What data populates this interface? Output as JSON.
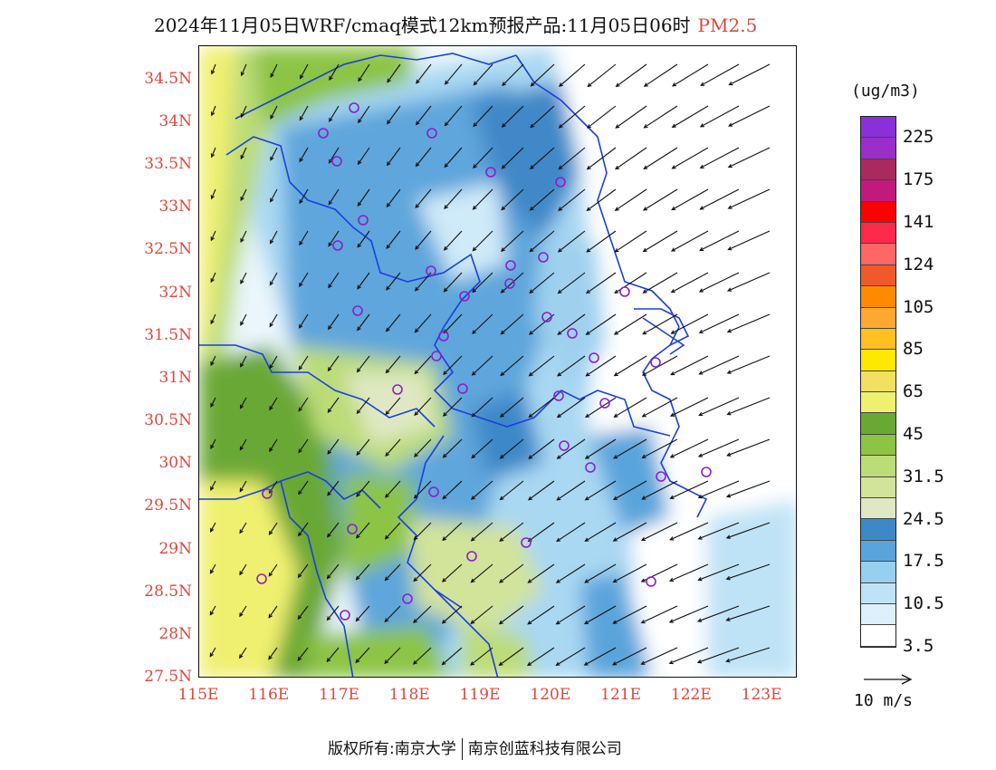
{
  "title": {
    "main": "2024年11月05日WRF/cmaq模式12km预报产品:11月05日06时",
    "pollutant": "PM2.5"
  },
  "map": {
    "lat_labels": [
      "34.5N",
      "34N",
      "33.5N",
      "33N",
      "32.5N",
      "32N",
      "31.5N",
      "31N",
      "30.5N",
      "30N",
      "29.5N",
      "29N",
      "28.5N",
      "28N",
      "27.5N"
    ],
    "lon_labels": [
      "115E",
      "116E",
      "117E",
      "118E",
      "119E",
      "120E",
      "121E",
      "122E",
      "123E"
    ],
    "lat_range": [
      27.5,
      34.9
    ],
    "lon_range": [
      115.0,
      123.5
    ],
    "station_marker_color": "#8b1fc9",
    "boundary_color": "#1a3fe0",
    "wind_arrow_color": "#111111"
  },
  "legend": {
    "unit": "(ug/m3)",
    "labels": [
      "225",
      "175",
      "141",
      "124",
      "105",
      "85",
      "65",
      "45",
      "31.5",
      "24.5",
      "17.5",
      "10.5",
      "3.5"
    ],
    "colors": [
      "#8b2fd8",
      "#9a2ec9",
      "#a92a5e",
      "#c21a7c",
      "#ff0000",
      "#ff2a4a",
      "#ff6666",
      "#f05a2a",
      "#ff8a00",
      "#ffa830",
      "#ffc020",
      "#ffe800",
      "#f3e060",
      "#f0f070",
      "#6aa834",
      "#8cc444",
      "#bcdc78",
      "#d2e39a",
      "#dfe8c2",
      "#3e88c8",
      "#5aa4dc",
      "#98cff0",
      "#bfe3f6",
      "#def0fb",
      "#ffffff"
    ],
    "wind_reference": "10 m/s"
  },
  "footer": {
    "copyright": "版权所有:南京大学",
    "company": "南京创蓝科技有限公司"
  }
}
